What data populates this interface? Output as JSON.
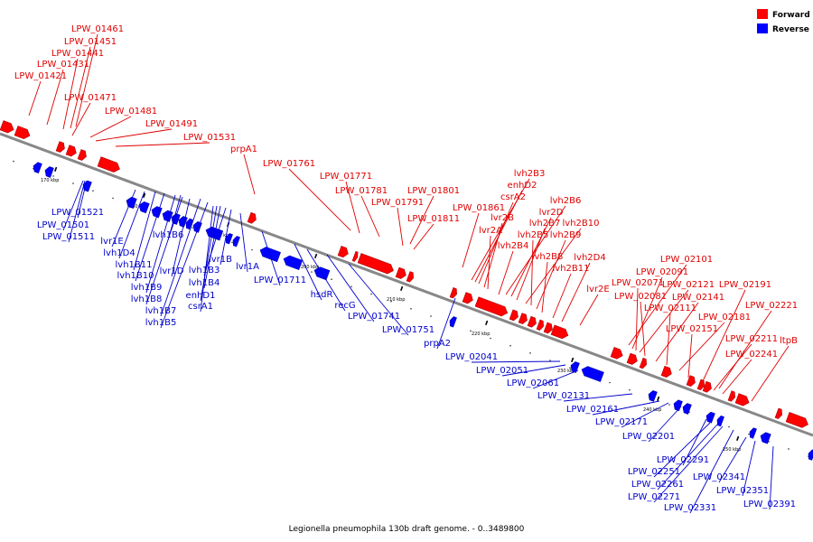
{
  "caption": "Legionella pneumophila 130b draft genome. - 0..3489800",
  "legend": [
    {
      "label": "Forward",
      "color": "#ff0000"
    },
    {
      "label": "Reverse",
      "color": "#0000ff"
    }
  ],
  "colors": {
    "forward": "#ff0000",
    "reverse": "#0000ff",
    "forward_label": "#e00000",
    "reverse_label": "#0000cc",
    "backbone": "#888888"
  },
  "ticks": [
    "170 kbp",
    "180 kbp",
    "190 kbp",
    "200 kbp",
    "210 kbp",
    "220 kbp",
    "230 kbp",
    "240 kbp",
    "250 kbp"
  ],
  "forward_labels": [
    "LPW_01461",
    "LPW_01451",
    "LPW_01441",
    "LPW_01431",
    "LPW_01421",
    "LPW_01471",
    "LPW_01481",
    "LPW_01491",
    "LPW_01531",
    "prpA1",
    "LPW_01761",
    "LPW_01771",
    "LPW_01781",
    "LPW_01791",
    "LPW_01801",
    "LPW_01811",
    "LPW_01861",
    "lvh2B3",
    "enhD2",
    "csrA2",
    "lvr2B",
    "lvr2A",
    "lvh2B4",
    "lvh2B6",
    "lvr2D",
    "lvh2B7",
    "lvh2B10",
    "lvh2B5",
    "lvh2B9",
    "lvh2B8",
    "lvh2B11",
    "lvh2D4",
    "lvr2E",
    "LPW_02101",
    "LPW_02091",
    "LPW_02071",
    "LPW_02121",
    "LPW_02191",
    "LPW_02081",
    "LPW_02141",
    "LPW_02111",
    "LPW_02221",
    "LPW_02181",
    "LPW_02151",
    "LPW_02211",
    "ltpB",
    "LPW_02241"
  ],
  "reverse_labels": [
    "LPW_01521",
    "LPW_01501",
    "LPW_01511",
    "lvr1E",
    "lvh1D4",
    "lvh1B11",
    "lvh1B6",
    "lvh1B10",
    "lvr1D",
    "lvh1B9",
    "lvh1B8",
    "lvh1B7",
    "lvh1B5",
    "lvr1B",
    "lvh1B3",
    "lvh1B4",
    "enhD1",
    "csrA1",
    "lvr1A",
    "LPW_01711",
    "hsdR",
    "recG",
    "LPW_01741",
    "LPW_01751",
    "prpA2",
    "LPW_02041",
    "LPW_02051",
    "LPW_02061",
    "LPW_02131",
    "LPW_02161",
    "LPW_02171",
    "LPW_02201",
    "LPW_02291",
    "LPW_02251",
    "LPW_02261",
    "LPW_02271",
    "LPW_02331",
    "LPW_02341",
    "LPW_02351",
    "LPW_02391"
  ]
}
